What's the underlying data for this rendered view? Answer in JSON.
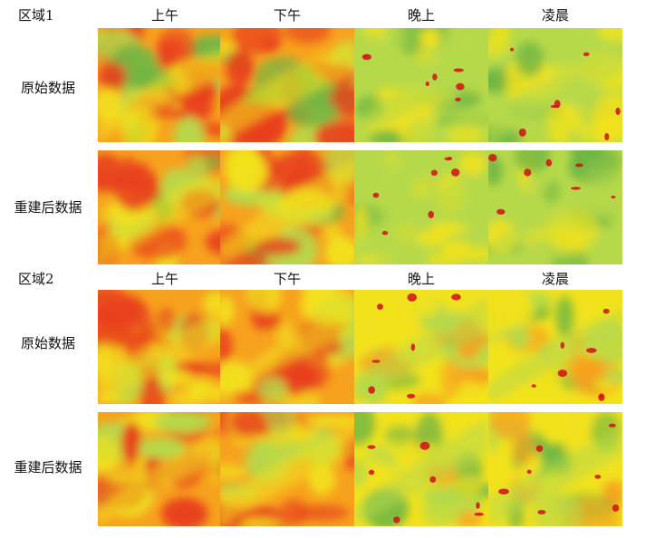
{
  "regions": [
    {
      "label": "区域1",
      "columns": [
        "上午",
        "下午",
        "晚上",
        "凌晨"
      ],
      "rows": [
        "原始数据",
        "重建后数据"
      ]
    },
    {
      "label": "区域2",
      "columns": [
        "上午",
        "下午",
        "晚上",
        "凌晨"
      ],
      "rows": [
        "原始数据",
        "重建后数据"
      ]
    }
  ],
  "colors": {
    "hot": "#e8401c",
    "warm": "#f7a21e",
    "mild": "#f2e21c",
    "cool": "#b6d94a",
    "green": "#6fb644",
    "dark": "#d11a1a"
  }
}
